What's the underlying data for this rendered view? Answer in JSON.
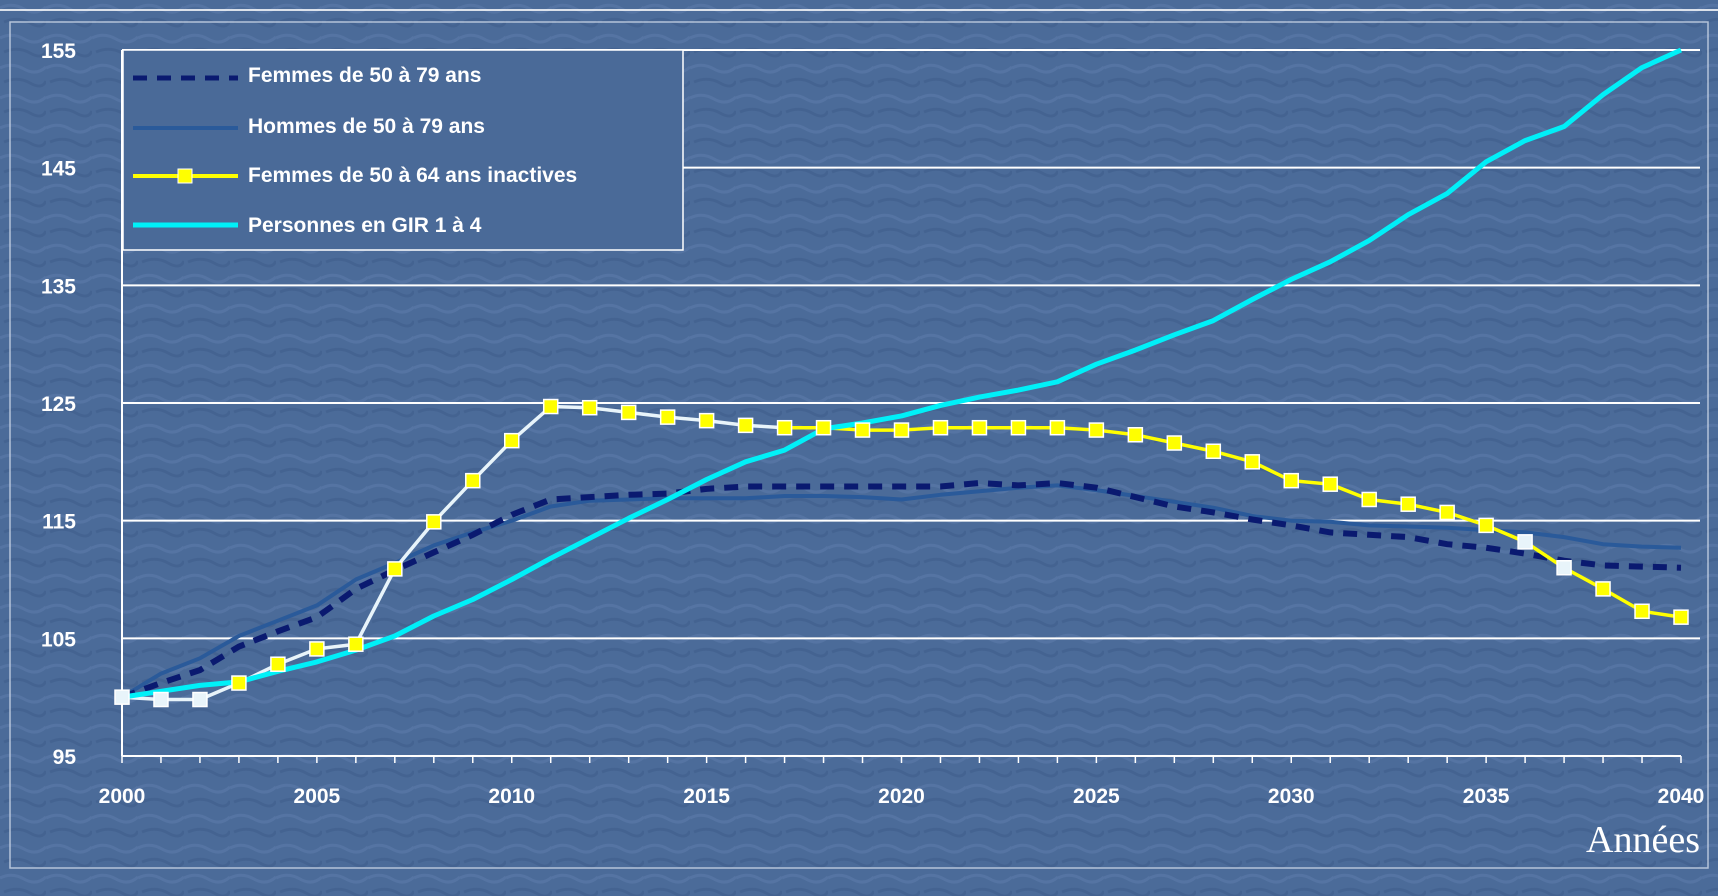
{
  "chart_data": {
    "type": "line",
    "title": "",
    "xlabel": "Années",
    "ylabel": "",
    "xlim": [
      2000,
      2040
    ],
    "ylim": [
      95,
      155
    ],
    "xticks": [
      "2000",
      "2005",
      "2010",
      "2015",
      "2020",
      "2025",
      "2030",
      "2035",
      "2040"
    ],
    "yticks": [
      "95",
      "105",
      "115",
      "125",
      "135",
      "145",
      "155"
    ],
    "grid": true,
    "legend_position": "top-left",
    "x": [
      2000,
      2001,
      2002,
      2003,
      2004,
      2005,
      2006,
      2007,
      2008,
      2009,
      2010,
      2011,
      2012,
      2013,
      2014,
      2015,
      2016,
      2017,
      2018,
      2019,
      2020,
      2021,
      2022,
      2023,
      2024,
      2025,
      2026,
      2027,
      2028,
      2029,
      2030,
      2031,
      2032,
      2033,
      2034,
      2035,
      2036,
      2037,
      2038,
      2039,
      2040
    ],
    "series": [
      {
        "name": "Femmes de 50 à 79 ans",
        "color": "#0a1a70",
        "style": "dashed",
        "values": [
          100,
          101.2,
          102.3,
          104.3,
          105.6,
          106.8,
          109.2,
          110.8,
          112.3,
          113.8,
          115.5,
          116.8,
          117.0,
          117.2,
          117.3,
          117.7,
          117.9,
          117.9,
          117.9,
          117.9,
          117.9,
          117.9,
          118.2,
          118.0,
          118.2,
          117.8,
          117.0,
          116.2,
          115.7,
          115.1,
          114.6,
          114.0,
          113.8,
          113.6,
          113.0,
          112.7,
          112.2,
          111.6,
          111.2,
          111.1,
          111.0
        ]
      },
      {
        "name": "Hommes de 50 à 79 ans",
        "color": "#2a5a9a",
        "style": "solid",
        "values": [
          100,
          102.0,
          103.3,
          105.2,
          106.5,
          107.8,
          110.0,
          111.4,
          112.9,
          114.0,
          115.0,
          116.2,
          116.7,
          116.8,
          116.9,
          116.9,
          116.9,
          117.1,
          117.1,
          117.0,
          116.8,
          117.2,
          117.5,
          117.8,
          118.0,
          117.6,
          117.1,
          116.6,
          116.1,
          115.4,
          115.0,
          114.9,
          114.6,
          114.5,
          114.4,
          114.2,
          114.0,
          113.6,
          113.0,
          112.8,
          112.7
        ]
      },
      {
        "name": "Femmes de 50 à 64 ans inactives",
        "color": "#ffff00",
        "style": "markers",
        "values": [
          100,
          99.8,
          99.8,
          101.2,
          102.8,
          104.1,
          104.5,
          110.9,
          114.9,
          118.4,
          121.8,
          124.7,
          124.6,
          124.2,
          123.8,
          123.5,
          123.1,
          122.9,
          122.9,
          122.7,
          122.7,
          122.9,
          122.9,
          122.9,
          122.9,
          122.7,
          122.3,
          121.6,
          120.9,
          120.0,
          118.4,
          118.1,
          116.8,
          116.4,
          115.7,
          114.6,
          113.2,
          111.0,
          109.2,
          107.3,
          106.8
        ]
      },
      {
        "name": "Personnes en GIR 1 à 4",
        "color": "#00f0f8",
        "style": "solid",
        "values": [
          100,
          100.5,
          101.0,
          101.3,
          102.2,
          103.0,
          104.0,
          105.2,
          106.9,
          108.3,
          110.0,
          111.8,
          113.5,
          115.2,
          116.8,
          118.5,
          120.0,
          121.0,
          122.8,
          123.3,
          123.9,
          124.8,
          125.5,
          126.1,
          126.8,
          128.3,
          129.5,
          130.8,
          132.0,
          133.8,
          135.5,
          137.0,
          138.8,
          141.0,
          142.8,
          145.5,
          147.3,
          148.5,
          151.2,
          153.5,
          155.0
        ]
      }
    ]
  }
}
